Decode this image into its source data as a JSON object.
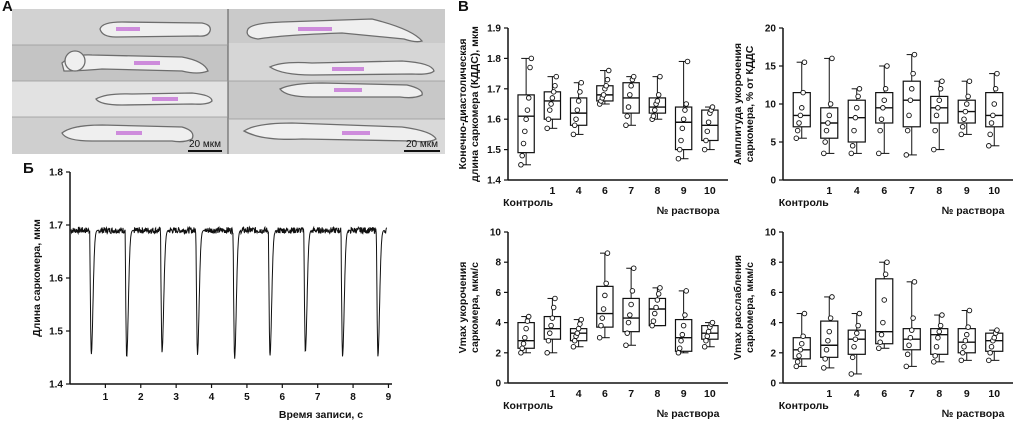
{
  "panels": {
    "a": "А",
    "b": "Б",
    "c": "В"
  },
  "micro": {
    "scale_left": "20 мкм",
    "scale_right": "20 мкм"
  },
  "colors": {
    "line": "#111111",
    "box_fill": "#ffffff",
    "dot_fill": "#ffffff",
    "stripe": "#c87ad8"
  },
  "chart_data": [
    {
      "type": "line",
      "id": "trace",
      "ylabel": "Длина саркомера, мкм",
      "xlabel": "Время записи, с",
      "xlim": [
        0,
        9.1
      ],
      "ylim": [
        1.4,
        1.8
      ],
      "yticks": [
        "1.4",
        "1.5",
        "1.6",
        "1.7",
        "1.8"
      ],
      "xticks": [
        "1",
        "2",
        "3",
        "4",
        "5",
        "6",
        "7",
        "8",
        "9"
      ],
      "baseline": 1.69,
      "peaks": [
        {
          "t": 0.6,
          "min": 1.455
        },
        {
          "t": 1.6,
          "min": 1.45
        },
        {
          "t": 2.6,
          "min": 1.46
        },
        {
          "t": 3.6,
          "min": 1.455
        },
        {
          "t": 4.65,
          "min": 1.447
        },
        {
          "t": 5.65,
          "min": 1.452
        },
        {
          "t": 6.65,
          "min": 1.46
        },
        {
          "t": 7.7,
          "min": 1.452
        },
        {
          "t": 8.7,
          "min": 1.452
        }
      ]
    },
    {
      "type": "box",
      "id": "edl",
      "ylabel1": "Конечно-диастолическая",
      "ylabel2": "длина саркомера (КДДС), мкм",
      "xlabel": "№ раствора",
      "ylim": [
        1.4,
        1.9
      ],
      "yticks": [
        "1.4",
        "1.5",
        "1.6",
        "1.7",
        "1.8",
        "1.9"
      ],
      "categories": [
        "Контроль",
        "1",
        "4",
        "6",
        "7",
        "8",
        "9",
        "10"
      ],
      "boxes": [
        {
          "min": 1.45,
          "q1": 1.49,
          "median": 1.61,
          "q3": 1.68,
          "max": 1.8,
          "points": [
            1.45,
            1.48,
            1.52,
            1.56,
            1.6,
            1.63,
            1.67,
            1.77,
            1.8
          ]
        },
        {
          "min": 1.57,
          "q1": 1.6,
          "median": 1.66,
          "q3": 1.69,
          "max": 1.74,
          "points": [
            1.57,
            1.6,
            1.63,
            1.65,
            1.67,
            1.69,
            1.71,
            1.74
          ]
        },
        {
          "min": 1.55,
          "q1": 1.58,
          "median": 1.62,
          "q3": 1.67,
          "max": 1.72,
          "points": [
            1.55,
            1.58,
            1.6,
            1.63,
            1.66,
            1.69,
            1.72
          ]
        },
        {
          "min": 1.65,
          "q1": 1.66,
          "median": 1.68,
          "q3": 1.71,
          "max": 1.76,
          "points": [
            1.65,
            1.66,
            1.67,
            1.68,
            1.7,
            1.71,
            1.73,
            1.76
          ]
        },
        {
          "min": 1.58,
          "q1": 1.62,
          "median": 1.67,
          "q3": 1.72,
          "max": 1.74,
          "points": [
            1.58,
            1.61,
            1.64,
            1.68,
            1.71,
            1.73,
            1.74
          ]
        },
        {
          "min": 1.6,
          "q1": 1.62,
          "median": 1.64,
          "q3": 1.67,
          "max": 1.74,
          "points": [
            1.6,
            1.61,
            1.63,
            1.65,
            1.66,
            1.68,
            1.74
          ]
        },
        {
          "min": 1.47,
          "q1": 1.5,
          "median": 1.59,
          "q3": 1.64,
          "max": 1.79,
          "points": [
            1.47,
            1.5,
            1.53,
            1.57,
            1.6,
            1.63,
            1.65,
            1.79
          ]
        },
        {
          "min": 1.5,
          "q1": 1.53,
          "median": 1.58,
          "q3": 1.63,
          "max": 1.64,
          "points": [
            1.5,
            1.53,
            1.56,
            1.59,
            1.62,
            1.63,
            1.64
          ]
        }
      ]
    },
    {
      "type": "box",
      "id": "amp",
      "ylabel1": "Амплитуда укорочения",
      "ylabel2": "саркомера, % от КДДС",
      "xlabel": "№ раствора",
      "ylim": [
        0,
        20
      ],
      "yticks": [
        "0",
        "5",
        "10",
        "15",
        "20"
      ],
      "categories": [
        "Контроль",
        "1",
        "4",
        "6",
        "7",
        "8",
        "9",
        "10"
      ],
      "boxes": [
        {
          "min": 5.5,
          "q1": 7,
          "median": 8.5,
          "q3": 11.5,
          "max": 15.5,
          "points": [
            5.5,
            6.5,
            7.5,
            8.5,
            9.5,
            11.5,
            15.5
          ]
        },
        {
          "min": 3.5,
          "q1": 5.5,
          "median": 7.5,
          "q3": 9.5,
          "max": 16,
          "points": [
            3.5,
            5,
            6.5,
            7.5,
            8.5,
            10,
            16
          ]
        },
        {
          "min": 3.5,
          "q1": 5,
          "median": 8.2,
          "q3": 10.5,
          "max": 12,
          "points": [
            3.5,
            4.5,
            6.5,
            8.2,
            9.5,
            11,
            12
          ]
        },
        {
          "min": 3.5,
          "q1": 7.5,
          "median": 9.5,
          "q3": 11.5,
          "max": 15,
          "points": [
            3.5,
            6.5,
            8,
            9.5,
            10.5,
            12,
            15
          ]
        },
        {
          "min": 3.3,
          "q1": 7,
          "median": 10.5,
          "q3": 13,
          "max": 16.5,
          "points": [
            3.3,
            6.5,
            8.5,
            10.5,
            12,
            14,
            16.5
          ]
        },
        {
          "min": 4,
          "q1": 7.5,
          "median": 9.5,
          "q3": 11,
          "max": 13,
          "points": [
            4,
            6.5,
            8.5,
            9.5,
            10.5,
            12,
            13
          ]
        },
        {
          "min": 6,
          "q1": 7.5,
          "median": 9,
          "q3": 10.5,
          "max": 13,
          "points": [
            6,
            7,
            8,
            9,
            10,
            11,
            13
          ]
        },
        {
          "min": 4.5,
          "q1": 7,
          "median": 8.5,
          "q3": 11.5,
          "max": 14,
          "points": [
            4.5,
            6,
            7.5,
            8.5,
            10,
            12,
            14
          ]
        }
      ]
    },
    {
      "type": "box",
      "id": "vshort",
      "ylabel1": "Vmax укорочения",
      "ylabel2": "саркомера, мкм/с",
      "xlabel": "№ раствора",
      "ylim": [
        0,
        10
      ],
      "yticks": [
        "0",
        "2",
        "4",
        "6",
        "8",
        "10"
      ],
      "categories": [
        "Контроль",
        "1",
        "4",
        "6",
        "7",
        "8",
        "9",
        "10"
      ],
      "boxes": [
        {
          "min": 2,
          "q1": 2.3,
          "median": 2.8,
          "q3": 4,
          "max": 4.4,
          "points": [
            2,
            2.3,
            2.6,
            3,
            3.6,
            4.1,
            4.4
          ]
        },
        {
          "min": 2,
          "q1": 2.9,
          "median": 3.6,
          "q3": 4.4,
          "max": 5.6,
          "points": [
            2,
            2.8,
            3.3,
            3.8,
            4.3,
            5,
            5.6
          ]
        },
        {
          "min": 2.4,
          "q1": 2.8,
          "median": 3.3,
          "q3": 3.6,
          "max": 4.2,
          "points": [
            2.4,
            2.8,
            3.1,
            3.3,
            3.6,
            3.9,
            4.2
          ]
        },
        {
          "min": 3,
          "q1": 3.7,
          "median": 4.6,
          "q3": 6.4,
          "max": 8.6,
          "points": [
            3,
            3.8,
            4.3,
            4.9,
            5.8,
            6.6,
            8.6
          ]
        },
        {
          "min": 2.5,
          "q1": 3.4,
          "median": 4.3,
          "q3": 5.6,
          "max": 7.6,
          "points": [
            2.5,
            3.3,
            4,
            4.5,
            5.2,
            6.1,
            7.6
          ]
        },
        {
          "min": 3.8,
          "q1": 3.8,
          "median": 4.9,
          "q3": 5.6,
          "max": 6.3,
          "points": [
            3.8,
            4.1,
            4.6,
            5,
            5.5,
            5.9,
            6.3
          ]
        },
        {
          "min": 2,
          "q1": 2.1,
          "median": 3,
          "q3": 4.2,
          "max": 6.1,
          "points": [
            2,
            2.3,
            2.8,
            3.2,
            3.8,
            4.5,
            6.1
          ]
        },
        {
          "min": 2.4,
          "q1": 2.9,
          "median": 3.3,
          "q3": 3.8,
          "max": 4,
          "points": [
            2.4,
            2.8,
            3.1,
            3.4,
            3.7,
            3.9,
            4
          ]
        }
      ]
    },
    {
      "type": "box",
      "id": "vrelax",
      "ylabel1": "Vmax расслабления",
      "ylabel2": "саркомера, мкм/с",
      "xlabel": "№ раствора",
      "ylim": [
        0,
        10
      ],
      "yticks": [
        "0",
        "2",
        "4",
        "6",
        "8",
        "10"
      ],
      "categories": [
        "Контроль",
        "1",
        "4",
        "6",
        "7",
        "8",
        "9",
        "10"
      ],
      "boxes": [
        {
          "min": 1.1,
          "q1": 1.6,
          "median": 2.2,
          "q3": 3,
          "max": 4.6,
          "points": [
            1.1,
            1.4,
            1.8,
            2.2,
            2.6,
            3.1,
            4.6
          ]
        },
        {
          "min": 1,
          "q1": 1.7,
          "median": 2.5,
          "q3": 4.1,
          "max": 5.7,
          "points": [
            1,
            1.6,
            2.2,
            2.8,
            3.4,
            4.3,
            5.7
          ]
        },
        {
          "min": 0.6,
          "q1": 1.9,
          "median": 2.9,
          "q3": 3.5,
          "max": 4.6,
          "points": [
            0.6,
            1.7,
            2.4,
            2.9,
            3.3,
            3.8,
            4.6
          ]
        },
        {
          "min": 2.3,
          "q1": 2.6,
          "median": 3.4,
          "q3": 6.9,
          "max": 8,
          "points": [
            2.3,
            2.7,
            3.2,
            4,
            5.5,
            7.2,
            8
          ]
        },
        {
          "min": 1.1,
          "q1": 2.2,
          "median": 2.9,
          "q3": 3.6,
          "max": 6.7,
          "points": [
            1.1,
            1.9,
            2.5,
            3,
            3.5,
            4.3,
            6.7
          ]
        },
        {
          "min": 1.4,
          "q1": 1.9,
          "median": 3.2,
          "q3": 3.6,
          "max": 4.5,
          "points": [
            1.4,
            1.8,
            2.4,
            3,
            3.4,
            3.8,
            4.5
          ]
        },
        {
          "min": 1.5,
          "q1": 2,
          "median": 2.7,
          "q3": 3.6,
          "max": 4.8,
          "points": [
            1.5,
            2,
            2.4,
            2.8,
            3.2,
            3.7,
            4.8
          ]
        },
        {
          "min": 1.5,
          "q1": 2.1,
          "median": 2.8,
          "q3": 3.3,
          "max": 3.5,
          "points": [
            1.5,
            2,
            2.4,
            2.8,
            3,
            3.3,
            3.5
          ]
        }
      ]
    }
  ]
}
